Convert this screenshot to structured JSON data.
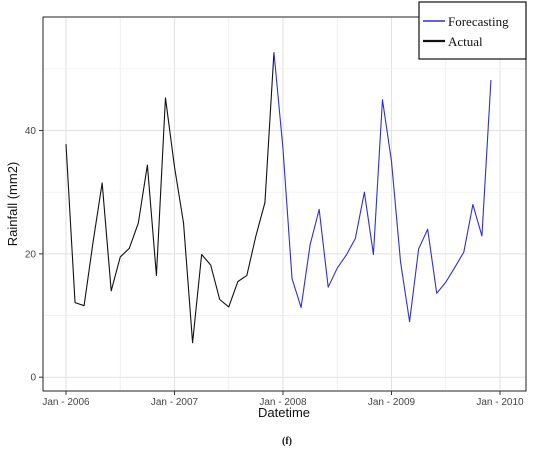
{
  "chart_data": {
    "type": "line",
    "title": "",
    "xlabel": "Datetime",
    "ylabel": "Rainfall (mm2)",
    "caption": "(f)",
    "x_ticks": [
      "Jan - 2006",
      "Jan - 2007",
      "Jan - 2008",
      "Jan - 2009",
      "Jan - 2010"
    ],
    "y_ticks": [
      0,
      20,
      40
    ],
    "ylim": [
      -1,
      56
    ],
    "grid": true,
    "legend_position": "top-right",
    "series": [
      {
        "name": "Forecasting",
        "color": "#2f2fd9",
        "x": [
          "2007-12",
          "2008-01",
          "2008-02",
          "2008-03",
          "2008-04",
          "2008-05",
          "2008-06",
          "2008-07",
          "2008-08",
          "2008-09",
          "2008-10",
          "2008-11",
          "2008-12",
          "2009-01",
          "2009-02",
          "2009-03",
          "2009-04",
          "2009-05",
          "2009-06",
          "2009-07",
          "2009-08",
          "2009-09",
          "2009-10",
          "2009-11",
          "2009-12"
        ],
        "values": [
          52.7,
          37,
          16,
          11.3,
          21.5,
          27.2,
          14.6,
          17.7,
          19.8,
          22.5,
          30,
          19.9,
          45,
          35,
          18.7,
          9,
          20.8,
          24,
          13.6,
          15.4,
          17.8,
          20.3,
          28,
          22.9,
          48.2
        ]
      },
      {
        "name": "Actual",
        "color": "#111111",
        "x": [
          "2006-01",
          "2006-02",
          "2006-03",
          "2006-04",
          "2006-05",
          "2006-06",
          "2006-07",
          "2006-08",
          "2006-09",
          "2006-10",
          "2006-11",
          "2006-12",
          "2007-01",
          "2007-02",
          "2007-03",
          "2007-04",
          "2007-05",
          "2007-06",
          "2007-07",
          "2007-08",
          "2007-09",
          "2007-10",
          "2007-11",
          "2007-12"
        ],
        "values": [
          37.8,
          12.1,
          11.6,
          22,
          31.5,
          14,
          19.5,
          20.9,
          25,
          34.4,
          16.5,
          45.3,
          34.1,
          25,
          5.6,
          19.9,
          18.2,
          12.6,
          11.4,
          15.5,
          16.5,
          22.9,
          28.3,
          52.7
        ]
      }
    ]
  }
}
